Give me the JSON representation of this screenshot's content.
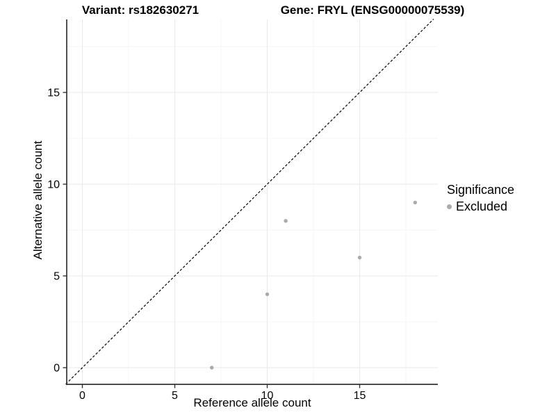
{
  "chart_data": {
    "type": "scatter",
    "title_variant": "Variant: rs182630271",
    "title_gene": "Gene: FRYL (ENSG00000075539)",
    "xlabel": "Reference allele count",
    "ylabel": "Alternative allele count",
    "xlim": [
      -0.9,
      19.2
    ],
    "ylim": [
      -0.9,
      19.0
    ],
    "xticks": [
      0,
      5,
      10,
      15
    ],
    "yticks": [
      0,
      5,
      10,
      15
    ],
    "x_minor_ticks": [
      2.5,
      7.5,
      12.5,
      17.5
    ],
    "y_minor_ticks": [
      2.5,
      7.5,
      12.5,
      17.5
    ],
    "grid": "major+minor",
    "identity_line": {
      "style": "dashed",
      "slope": 1,
      "intercept": 0,
      "color": "#000000"
    },
    "series": [
      {
        "name": "Excluded",
        "color": "#aaaaaa",
        "points": [
          {
            "x": 7,
            "y": 0
          },
          {
            "x": 10,
            "y": 4
          },
          {
            "x": 11,
            "y": 8
          },
          {
            "x": 15,
            "y": 6
          },
          {
            "x": 18,
            "y": 9
          }
        ]
      }
    ],
    "legend": {
      "title": "Significance",
      "position": "right",
      "entries": [
        {
          "label": "Excluded",
          "color": "#aaaaaa"
        }
      ]
    }
  },
  "colors": {
    "background": "#ffffff",
    "grid_major": "#e9e9e9",
    "grid_minor": "#f4f4f4",
    "axis_line": "#333333",
    "tick_mark": "#333333",
    "text": "#000000",
    "point": "#aaaaaa"
  }
}
